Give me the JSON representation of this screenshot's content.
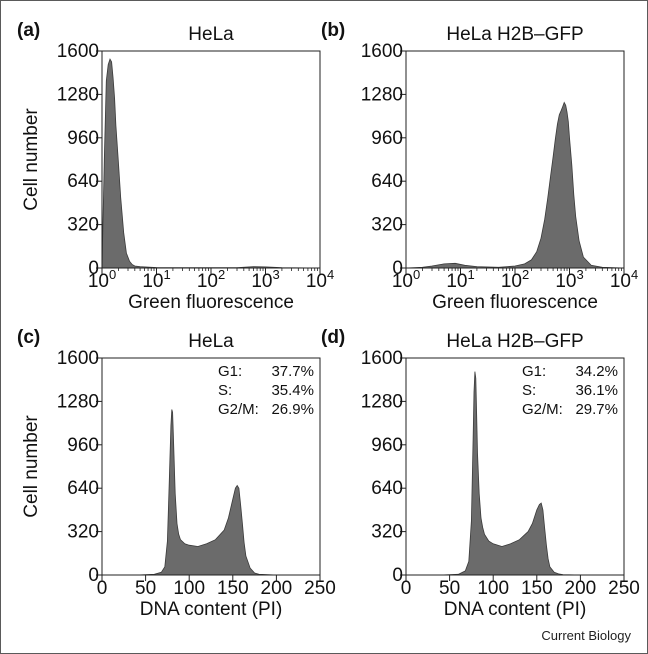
{
  "figure": {
    "credit": "Current Biology"
  },
  "chart_data": [
    {
      "type": "area",
      "panel_letter": "(a)",
      "title": "HeLa",
      "xlabel": "Green fluorescence",
      "ylabel": "Cell number",
      "xscale": "log",
      "xlim": [
        1,
        10000
      ],
      "ylim": [
        0,
        1600
      ],
      "yticks": [
        "0",
        "320",
        "640",
        "960",
        "1280",
        "1600"
      ],
      "xticks": [
        {
          "base": "10",
          "exp": "0"
        },
        {
          "base": "10",
          "exp": "1"
        },
        {
          "base": "10",
          "exp": "2"
        },
        {
          "base": "10",
          "exp": "3"
        },
        {
          "base": "10",
          "exp": "4"
        }
      ],
      "grid": false,
      "stats": [],
      "x": [
        1,
        1.1,
        1.2,
        1.3,
        1.4,
        1.5,
        1.6,
        1.7,
        1.8,
        2.0,
        2.2,
        2.5,
        2.8,
        3.2,
        3.6,
        4,
        5,
        6,
        8,
        10,
        20,
        50,
        100,
        300,
        600,
        1000,
        2000,
        10000
      ],
      "y": [
        0,
        800,
        1380,
        1500,
        1540,
        1520,
        1400,
        1250,
        1050,
        780,
        520,
        260,
        110,
        50,
        25,
        15,
        10,
        8,
        5,
        4,
        3,
        3,
        2,
        3,
        10,
        8,
        3,
        0
      ]
    },
    {
      "type": "area",
      "panel_letter": "(b)",
      "title": "HeLa  H2B–GFP",
      "xlabel": "Green fluorescence",
      "ylabel": "",
      "xscale": "log",
      "xlim": [
        1,
        10000
      ],
      "ylim": [
        0,
        1600
      ],
      "yticks": [
        "0",
        "320",
        "640",
        "960",
        "1280",
        "1600"
      ],
      "xticks": [
        {
          "base": "10",
          "exp": "0"
        },
        {
          "base": "10",
          "exp": "1"
        },
        {
          "base": "10",
          "exp": "2"
        },
        {
          "base": "10",
          "exp": "3"
        },
        {
          "base": "10",
          "exp": "4"
        }
      ],
      "grid": false,
      "stats": [],
      "x": [
        1,
        2,
        3,
        5,
        8,
        12,
        20,
        50,
        100,
        150,
        200,
        250,
        300,
        350,
        400,
        450,
        500,
        550,
        600,
        650,
        700,
        750,
        800,
        850,
        900,
        950,
        1000,
        1100,
        1200,
        1300,
        1500,
        1800,
        2500,
        4000,
        10000
      ],
      "y": [
        0,
        5,
        15,
        30,
        35,
        20,
        10,
        5,
        15,
        30,
        60,
        120,
        220,
        360,
        520,
        680,
        820,
        950,
        1060,
        1130,
        1160,
        1190,
        1220,
        1200,
        1150,
        1080,
        960,
        760,
        540,
        380,
        200,
        80,
        20,
        5,
        0
      ]
    },
    {
      "type": "area",
      "panel_letter": "(c)",
      "title": "HeLa",
      "xlabel": "DNA content (PI)",
      "ylabel": "Cell number",
      "xscale": "linear",
      "xlim": [
        0,
        250
      ],
      "ylim": [
        0,
        1600
      ],
      "yticks": [
        "0",
        "320",
        "640",
        "960",
        "1280",
        "1600"
      ],
      "xticks": [
        {
          "base": "0"
        },
        {
          "base": "50"
        },
        {
          "base": "100"
        },
        {
          "base": "150"
        },
        {
          "base": "200"
        },
        {
          "base": "250"
        }
      ],
      "grid": false,
      "stats": [
        {
          "label": "G1:",
          "value": "37.7%"
        },
        {
          "label": "S:",
          "value": "35.4%"
        },
        {
          "label": "G2/M:",
          "value": "26.9%"
        }
      ],
      "x": [
        0,
        40,
        60,
        68,
        72,
        75,
        77,
        79,
        80,
        81,
        82,
        84,
        86,
        88,
        90,
        95,
        100,
        110,
        120,
        130,
        140,
        145,
        150,
        153,
        155,
        157,
        159,
        161,
        163,
        165,
        170,
        175,
        180,
        190,
        200,
        250
      ],
      "y": [
        0,
        0,
        5,
        20,
        60,
        250,
        650,
        1100,
        1220,
        1200,
        1000,
        600,
        380,
        300,
        260,
        230,
        220,
        210,
        230,
        260,
        330,
        420,
        560,
        640,
        660,
        640,
        520,
        380,
        240,
        140,
        50,
        15,
        5,
        3,
        0,
        0
      ]
    },
    {
      "type": "area",
      "panel_letter": "(d)",
      "title": "HeLa  H2B–GFP",
      "xlabel": "DNA content (PI)",
      "ylabel": "",
      "xscale": "linear",
      "xlim": [
        0,
        250
      ],
      "ylim": [
        0,
        1600
      ],
      "yticks": [
        "0",
        "320",
        "640",
        "960",
        "1280",
        "1600"
      ],
      "xticks": [
        {
          "base": "0"
        },
        {
          "base": "50"
        },
        {
          "base": "100"
        },
        {
          "base": "150"
        },
        {
          "base": "200"
        },
        {
          "base": "250"
        }
      ],
      "grid": false,
      "stats": [
        {
          "label": "G1:",
          "value": "34.2%"
        },
        {
          "label": "S:",
          "value": "36.1%"
        },
        {
          "label": "G2/M:",
          "value": "29.7%"
        }
      ],
      "x": [
        0,
        40,
        60,
        68,
        72,
        75,
        77,
        78,
        79,
        80,
        81,
        82,
        84,
        86,
        88,
        90,
        95,
        100,
        110,
        120,
        130,
        140,
        145,
        150,
        153,
        155,
        157,
        159,
        161,
        163,
        165,
        170,
        175,
        180,
        200,
        250
      ],
      "y": [
        0,
        0,
        5,
        30,
        100,
        400,
        1000,
        1350,
        1500,
        1450,
        1200,
        900,
        600,
        420,
        350,
        300,
        250,
        230,
        210,
        230,
        260,
        320,
        380,
        480,
        520,
        530,
        480,
        350,
        220,
        120,
        60,
        20,
        8,
        3,
        0,
        0
      ]
    }
  ]
}
